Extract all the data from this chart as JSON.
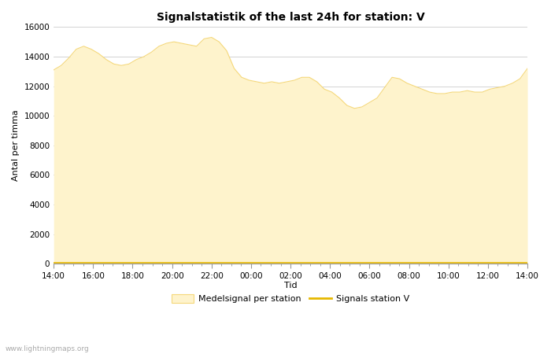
{
  "title": "Signalstatistik of the last 24h for station: V",
  "ylabel": "Antal per timma",
  "xlabel": "Tid",
  "watermark": "www.lightningmaps.org",
  "ylim": [
    0,
    16000
  ],
  "yticks": [
    0,
    2000,
    4000,
    6000,
    8000,
    10000,
    12000,
    14000,
    16000
  ],
  "xtick_labels": [
    "14:00",
    "16:00",
    "18:00",
    "20:00",
    "22:00",
    "00:00",
    "02:00",
    "04:00",
    "06:00",
    "08:00",
    "10:00",
    "12:00",
    "14:00"
  ],
  "fill_color": "#fef3cc",
  "fill_edge_color": "#f5d87a",
  "line_color": "#e6b800",
  "background_color": "#ffffff",
  "grid_color": "#cccccc",
  "title_fontsize": 10,
  "axis_fontsize": 8,
  "tick_fontsize": 7.5,
  "legend_label_fill": "Medelsignal per station",
  "legend_label_line": "Signals station V",
  "fill_values": [
    13100,
    13400,
    13900,
    14500,
    14700,
    14500,
    14200,
    13800,
    13500,
    13400,
    13500,
    13800,
    14000,
    14300,
    14700,
    14900,
    15000,
    14900,
    14800,
    14700,
    15200,
    15300,
    15000,
    14400,
    13200,
    12600,
    12400,
    12300,
    12200,
    12300,
    12200,
    12300,
    12400,
    12600,
    12600,
    12300,
    11800,
    11600,
    11200,
    10700,
    10500,
    10600,
    10900,
    11200,
    11900,
    12600,
    12500,
    12200,
    12000,
    11800,
    11600,
    11500,
    11500,
    11600,
    11600,
    11700,
    11600,
    11600,
    11800,
    11900,
    12000,
    12200,
    12500,
    13200
  ],
  "line_values": [
    50,
    50,
    50,
    50,
    50,
    50,
    50,
    50,
    50,
    50,
    50,
    50,
    50,
    50,
    50,
    50,
    50,
    50,
    50,
    50,
    50,
    50,
    50,
    50,
    50,
    50,
    50,
    50,
    50,
    50,
    50,
    50,
    50,
    50,
    50,
    50,
    50,
    50,
    50,
    50,
    50,
    50,
    50,
    50,
    50,
    50,
    50,
    50,
    50,
    50,
    50,
    50,
    50,
    50,
    50,
    50,
    50,
    50,
    50,
    50,
    50,
    50,
    50,
    50
  ]
}
